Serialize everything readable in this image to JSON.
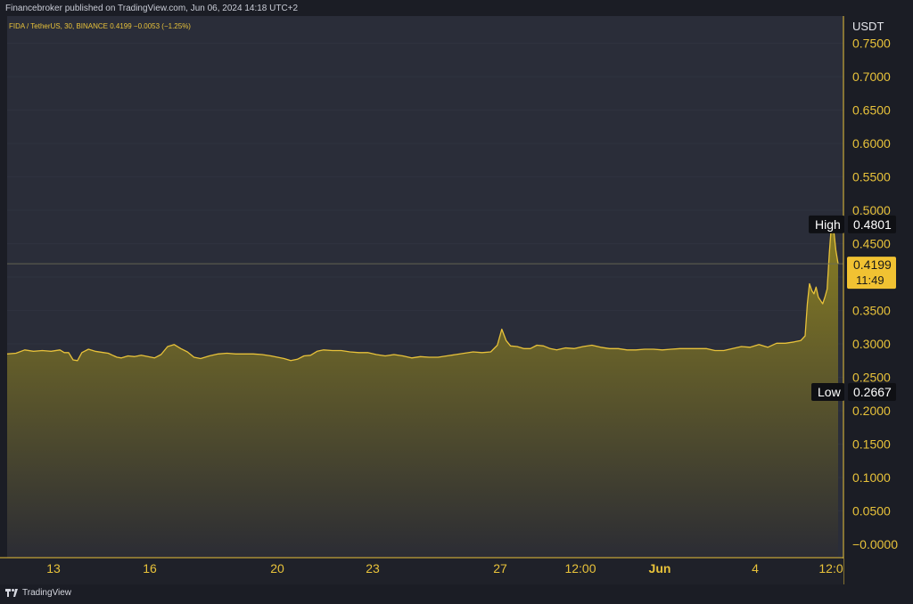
{
  "header": {
    "published_text": "Financebroker published on TradingView.com, Jun 06, 2024 14:18 UTC+2"
  },
  "symbol_info": {
    "text": "FIDA / TetherUS, 30, BINANCE  0.4199  −0.0053  (−1.25%)"
  },
  "footer": {
    "brand": "TradingView"
  },
  "price_axis": {
    "currency": "USDT",
    "ticks": [
      "0.7500",
      "0.7000",
      "0.6500",
      "0.6000",
      "0.5500",
      "0.5000",
      "0.4500",
      "0.3500",
      "0.3000",
      "0.2500",
      "0.2000",
      "0.1500",
      "0.1000",
      "0.0500",
      "−0.0000"
    ]
  },
  "markers": {
    "high_label": "High",
    "high_value": "0.4801",
    "low_label": "Low",
    "low_value": "0.2667",
    "last_price": "0.4199",
    "countdown": "11:49"
  },
  "colors": {
    "background": "#2a2d39",
    "line": "#e8c23a",
    "area_top": "#8a7f23",
    "area_bottom": "#2b2c34",
    "axis_text": "#e8c23a",
    "grid": "#353846"
  },
  "chart_data": {
    "type": "area",
    "title": "FIDA / TetherUS, 30, BINANCE",
    "ylim": [
      0,
      0.8
    ],
    "x_tick_labels": [
      "13",
      "16",
      "20",
      "23",
      "27",
      "12:00",
      "Jun",
      "4",
      "12:0"
    ],
    "points": [
      [
        0,
        0.285
      ],
      [
        4,
        0.286
      ],
      [
        8,
        0.291
      ],
      [
        12,
        0.289
      ],
      [
        16,
        0.29
      ],
      [
        20,
        0.289
      ],
      [
        24,
        0.291
      ],
      [
        26,
        0.287
      ],
      [
        28,
        0.287
      ],
      [
        30,
        0.276
      ],
      [
        32,
        0.275
      ],
      [
        34,
        0.287
      ],
      [
        37,
        0.292
      ],
      [
        40,
        0.289
      ],
      [
        44,
        0.287
      ],
      [
        46,
        0.286
      ],
      [
        48,
        0.283
      ],
      [
        50,
        0.28
      ],
      [
        52,
        0.279
      ],
      [
        55,
        0.282
      ],
      [
        58,
        0.281
      ],
      [
        61,
        0.283
      ],
      [
        64,
        0.281
      ],
      [
        67,
        0.279
      ],
      [
        70,
        0.284
      ],
      [
        73,
        0.296
      ],
      [
        76,
        0.299
      ],
      [
        79,
        0.293
      ],
      [
        82,
        0.288
      ],
      [
        85,
        0.28
      ],
      [
        88,
        0.278
      ],
      [
        92,
        0.282
      ],
      [
        96,
        0.285
      ],
      [
        100,
        0.286
      ],
      [
        104,
        0.285
      ],
      [
        108,
        0.285
      ],
      [
        112,
        0.285
      ],
      [
        116,
        0.284
      ],
      [
        120,
        0.282
      ],
      [
        123,
        0.28
      ],
      [
        126,
        0.278
      ],
      [
        129,
        0.275
      ],
      [
        132,
        0.277
      ],
      [
        135,
        0.282
      ],
      [
        138,
        0.283
      ],
      [
        141,
        0.289
      ],
      [
        144,
        0.291
      ],
      [
        148,
        0.29
      ],
      [
        152,
        0.29
      ],
      [
        156,
        0.288
      ],
      [
        160,
        0.287
      ],
      [
        164,
        0.287
      ],
      [
        168,
        0.284
      ],
      [
        172,
        0.282
      ],
      [
        176,
        0.284
      ],
      [
        180,
        0.282
      ],
      [
        184,
        0.279
      ],
      [
        188,
        0.281
      ],
      [
        192,
        0.28
      ],
      [
        196,
        0.28
      ],
      [
        200,
        0.282
      ],
      [
        204,
        0.284
      ],
      [
        208,
        0.286
      ],
      [
        212,
        0.288
      ],
      [
        216,
        0.287
      ],
      [
        220,
        0.288
      ],
      [
        223,
        0.298
      ],
      [
        225,
        0.322
      ],
      [
        227,
        0.305
      ],
      [
        229,
        0.297
      ],
      [
        232,
        0.296
      ],
      [
        235,
        0.293
      ],
      [
        238,
        0.293
      ],
      [
        241,
        0.298
      ],
      [
        244,
        0.297
      ],
      [
        247,
        0.293
      ],
      [
        250,
        0.291
      ],
      [
        254,
        0.294
      ],
      [
        258,
        0.293
      ],
      [
        262,
        0.296
      ],
      [
        266,
        0.298
      ],
      [
        270,
        0.295
      ],
      [
        274,
        0.293
      ],
      [
        278,
        0.293
      ],
      [
        282,
        0.291
      ],
      [
        286,
        0.291
      ],
      [
        290,
        0.292
      ],
      [
        294,
        0.292
      ],
      [
        298,
        0.291
      ],
      [
        302,
        0.292
      ],
      [
        306,
        0.293
      ],
      [
        310,
        0.293
      ],
      [
        314,
        0.293
      ],
      [
        318,
        0.293
      ],
      [
        322,
        0.29
      ],
      [
        326,
        0.29
      ],
      [
        330,
        0.293
      ],
      [
        334,
        0.296
      ],
      [
        338,
        0.295
      ],
      [
        342,
        0.299
      ],
      [
        346,
        0.295
      ],
      [
        350,
        0.301
      ],
      [
        354,
        0.301
      ],
      [
        358,
        0.303
      ],
      [
        361,
        0.305
      ],
      [
        363,
        0.312
      ],
      [
        364,
        0.36
      ],
      [
        365,
        0.39
      ],
      [
        366,
        0.38
      ],
      [
        367,
        0.375
      ],
      [
        368,
        0.385
      ],
      [
        369,
        0.37
      ],
      [
        370,
        0.365
      ],
      [
        371,
        0.36
      ],
      [
        372,
        0.37
      ],
      [
        373,
        0.382
      ],
      [
        374,
        0.435
      ],
      [
        375,
        0.4801
      ],
      [
        376,
        0.47
      ],
      [
        377,
        0.44
      ],
      [
        378,
        0.4199
      ]
    ]
  }
}
